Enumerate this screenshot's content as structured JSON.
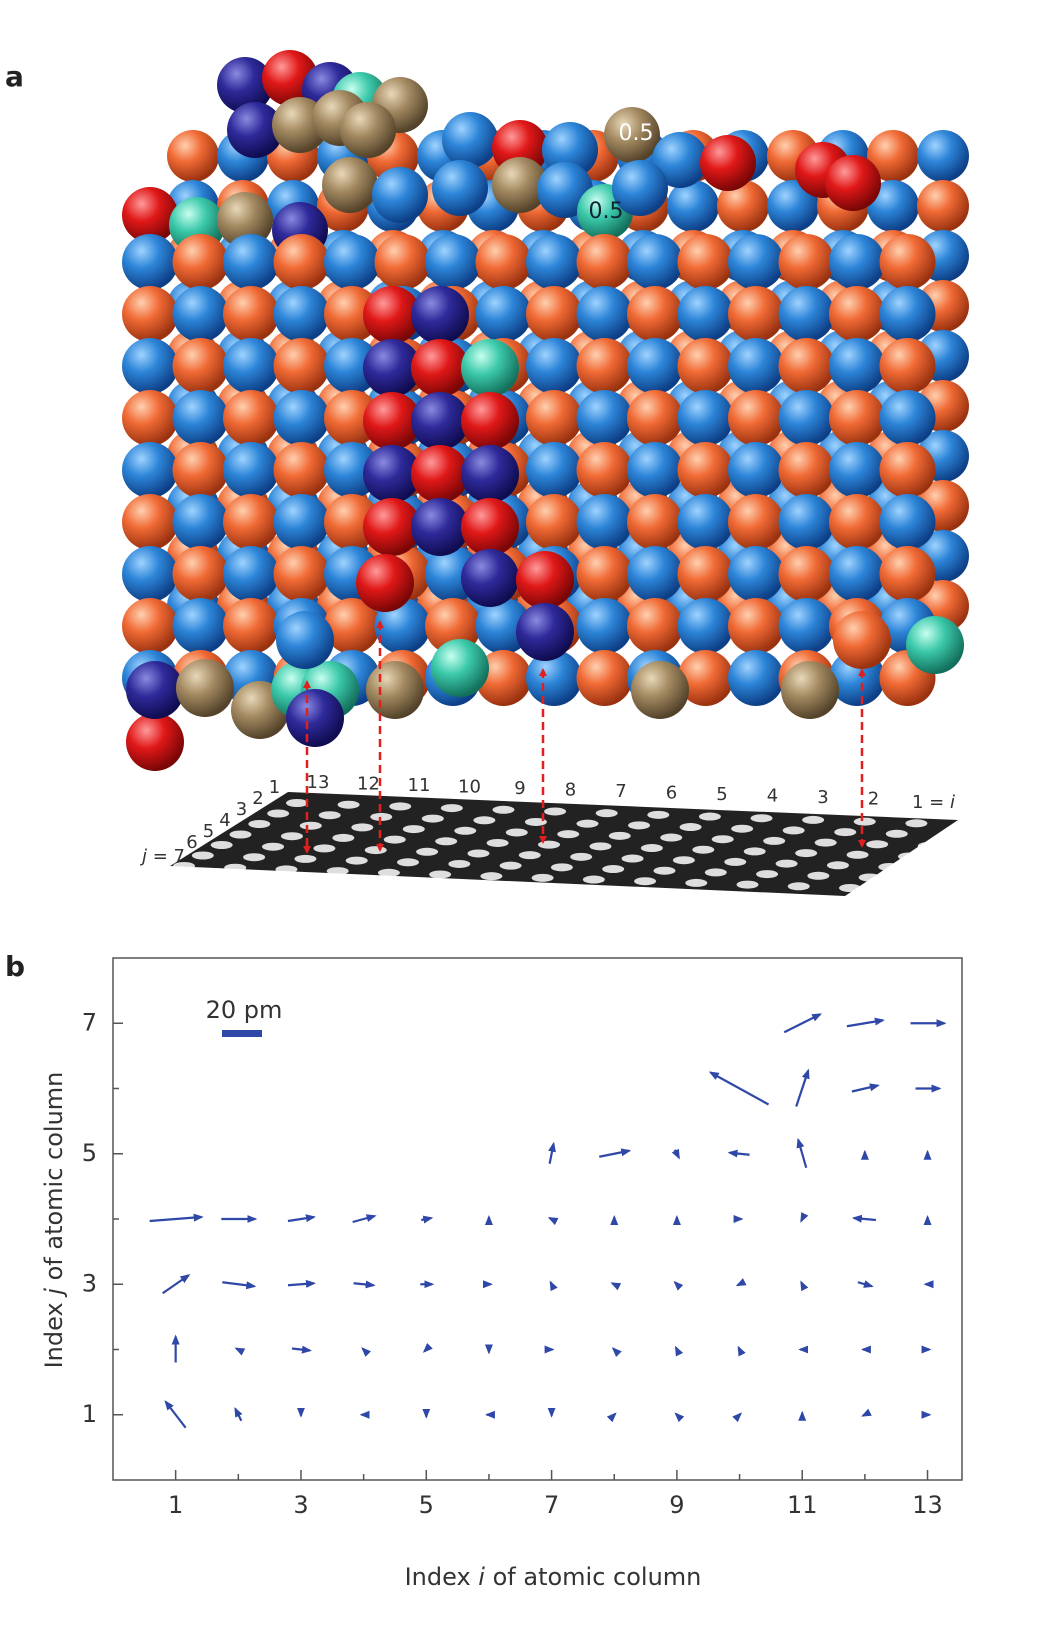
{
  "panel_a": {
    "label": "a",
    "annotations": [
      "0.5",
      "0.5"
    ],
    "i_labels": [
      "13",
      "12",
      "11",
      "10",
      "9",
      "8",
      "7",
      "6",
      "5",
      "4",
      "3",
      "2"
    ],
    "i_last": [
      "1 = ",
      "i"
    ],
    "j_first": [
      "j",
      " = 7"
    ],
    "j_labels": [
      "6",
      "5",
      "4",
      "3",
      "2",
      "1"
    ]
  },
  "panel_b_label": "b",
  "chart_data": {
    "type": "quiver",
    "xlabel": [
      "Index ",
      "i",
      " of atomic column"
    ],
    "ylabel": [
      "Index ",
      "j",
      " of atomic column"
    ],
    "xlim": [
      0,
      13.55
    ],
    "ylim": [
      0,
      8
    ],
    "xticks": [
      1,
      3,
      5,
      7,
      9,
      11,
      13
    ],
    "xminorticks": [
      2,
      4,
      6,
      8,
      10,
      12
    ],
    "yticks": [
      1,
      3,
      5,
      7
    ],
    "yminorticks": [
      2,
      4,
      6
    ],
    "color": "#2f48a8",
    "scale_bar": {
      "value": 20,
      "label": "20 pm"
    },
    "x": [
      1,
      2,
      3,
      4,
      5,
      6,
      7,
      8,
      9,
      10,
      11,
      12,
      13,
      1,
      2,
      3,
      4,
      5,
      6,
      7,
      8,
      9,
      10,
      11,
      12,
      13,
      1,
      2,
      3,
      4,
      5,
      6,
      7,
      8,
      9,
      10,
      11,
      12,
      13,
      1,
      2,
      3,
      4,
      5,
      6,
      7,
      8,
      9,
      10,
      11,
      12,
      13,
      7,
      8,
      9,
      10,
      11,
      12,
      13,
      10,
      11,
      12,
      13,
      11,
      12,
      13
    ],
    "y": [
      1,
      1,
      1,
      1,
      1,
      1,
      1,
      1,
      1,
      1,
      1,
      1,
      1,
      2,
      2,
      2,
      2,
      2,
      2,
      2,
      2,
      2,
      2,
      2,
      2,
      2,
      3,
      3,
      3,
      3,
      3,
      3,
      3,
      3,
      3,
      3,
      3,
      3,
      3,
      4,
      4,
      4,
      4,
      4,
      4,
      4,
      4,
      4,
      4,
      4,
      4,
      4,
      5,
      5,
      5,
      5,
      5,
      5,
      5,
      6,
      6,
      6,
      6,
      7,
      7,
      7
    ],
    "u": [
      -10,
      -3,
      0,
      -2,
      0,
      -2,
      0,
      1,
      -1,
      1,
      0,
      -2,
      2,
      0,
      -2,
      9,
      -1,
      -2,
      0,
      1,
      -1,
      -1,
      -1,
      -2,
      -2,
      2,
      13,
      16,
      13,
      10,
      6,
      2,
      -1,
      -2,
      -2,
      -2,
      -1,
      7,
      -2,
      26,
      17,
      13,
      11,
      5,
      0,
      -2,
      0,
      0,
      2,
      -1,
      -11,
      0,
      2,
      15,
      2,
      -10,
      -4,
      0,
      0,
      -29,
      6,
      13,
      12,
      18,
      18,
      17
    ],
    "v": [
      13,
      6,
      -1,
      0,
      -2,
      0,
      -1,
      1,
      1,
      1,
      2,
      -1,
      0,
      13,
      1,
      -1,
      1,
      -2,
      -3,
      0,
      1,
      2,
      2,
      0,
      0,
      0,
      9,
      -2,
      1,
      -1,
      0,
      0,
      2,
      1,
      2,
      -1,
      2,
      -2,
      0,
      2,
      0,
      2,
      3,
      1,
      2,
      1,
      2,
      2,
      0,
      -2,
      1,
      2,
      10,
      3,
      -4,
      1,
      14,
      2,
      2,
      16,
      18,
      3,
      0,
      9,
      3,
      0
    ]
  }
}
